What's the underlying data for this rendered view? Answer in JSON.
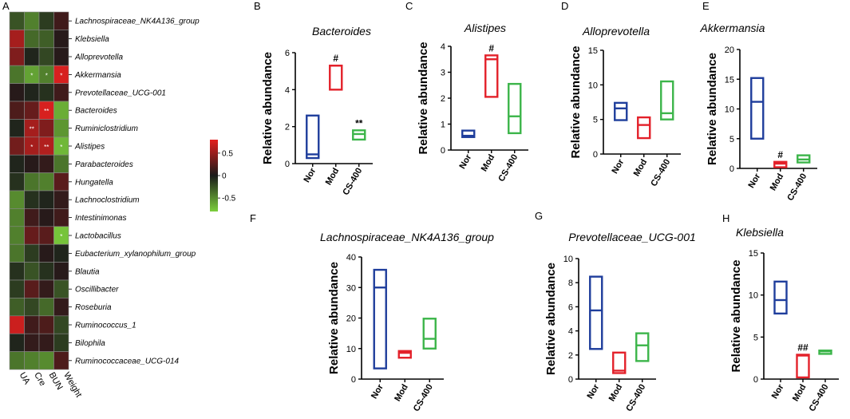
{
  "heatmap": {
    "panel_label": "A",
    "columns": [
      "UA",
      "Cre",
      "BUN",
      "Weight"
    ],
    "rows": [
      "Lachnospiraceae_NK4A136_group",
      "Klebsiella",
      "Alloprevotella",
      "Akkermansia",
      "Prevotellaceae_UCG-001",
      "Bacteroides",
      "Ruminiclostridium",
      "Alistipes",
      "Parabacteroides",
      "Hungatella",
      "Lachnoclostridium",
      "Intestinimonas",
      "Lactobacillus",
      "Eubacterium_xylanophilum_group",
      "Blautia",
      "Oscillibacter",
      "Roseburia",
      "Ruminococcus_1",
      "Bilophila",
      "Ruminococcaceae_UCG-014"
    ],
    "values": [
      [
        -0.25,
        -0.45,
        -0.15,
        0.15
      ],
      [
        0.55,
        -0.35,
        -0.3,
        0.05
      ],
      [
        0.4,
        -0.05,
        -0.2,
        0.05
      ],
      [
        -0.4,
        -0.6,
        -0.45,
        0.75
      ],
      [
        0.05,
        -0.05,
        -0.1,
        0.15
      ],
      [
        0.2,
        0.3,
        0.75,
        -0.65
      ],
      [
        -0.05,
        0.55,
        0.4,
        -0.55
      ],
      [
        0.35,
        0.55,
        0.6,
        -0.7
      ],
      [
        -0.05,
        0.05,
        0.1,
        -0.4
      ],
      [
        -0.1,
        -0.4,
        -0.45,
        0.25
      ],
      [
        -0.5,
        -0.1,
        -0.05,
        0.1
      ],
      [
        -0.45,
        0.15,
        0.05,
        0.15
      ],
      [
        -0.45,
        0.3,
        0.25,
        -0.75
      ],
      [
        -0.4,
        -0.15,
        0.05,
        -0.05
      ],
      [
        -0.1,
        -0.25,
        -0.1,
        0.05
      ],
      [
        -0.15,
        0.25,
        0.1,
        -0.25
      ],
      [
        -0.3,
        -0.2,
        -0.35,
        0.1
      ],
      [
        0.7,
        0.15,
        0.2,
        -0.2
      ],
      [
        -0.05,
        0.1,
        0.1,
        -0.15
      ],
      [
        -0.4,
        -0.45,
        -0.5,
        0.2
      ]
    ],
    "significance": [
      [
        "",
        "",
        "",
        ""
      ],
      [
        "",
        "",
        "",
        ""
      ],
      [
        "",
        "",
        "",
        ""
      ],
      [
        "",
        "*",
        "*",
        "*"
      ],
      [
        "",
        "",
        "",
        ""
      ],
      [
        "",
        "",
        "**",
        ""
      ],
      [
        "",
        "**",
        "",
        ""
      ],
      [
        "",
        "*",
        "**",
        "*"
      ],
      [
        "",
        "",
        "",
        ""
      ],
      [
        "",
        "",
        "",
        ""
      ],
      [
        "",
        "",
        "",
        ""
      ],
      [
        "",
        "",
        "",
        ""
      ],
      [
        "",
        "",
        "",
        "*"
      ],
      [
        "",
        "",
        "",
        ""
      ],
      [
        "",
        "",
        "",
        ""
      ],
      [
        "",
        "",
        "",
        ""
      ],
      [
        "",
        "",
        "",
        ""
      ],
      [
        "",
        "",
        "",
        ""
      ],
      [
        "",
        "",
        "",
        ""
      ],
      [
        "",
        "",
        "",
        ""
      ]
    ],
    "colorbar": {
      "ticks": [
        "0.5",
        "0",
        "-0.5"
      ],
      "tick_values": [
        0.5,
        0,
        -0.5
      ],
      "range": [
        -0.8,
        0.8
      ]
    }
  },
  "colors": {
    "Nor": "#1f3e9c",
    "Mod": "#e3212a",
    "CS-400": "#3cb54a",
    "heat_low": "#7ccf3c",
    "heat_mid": "#1a1a1a",
    "heat_high": "#e4201f"
  },
  "chart_data": [
    {
      "panel": "B",
      "type": "floating-bar",
      "title": "Bacteroides",
      "ylabel": "Relative abundance",
      "ylim": [
        0,
        6
      ],
      "yticks": [
        0,
        2,
        4,
        6
      ],
      "categories": [
        "Nor",
        "Mod",
        "CS-400"
      ],
      "min": [
        0.3,
        4.0,
        1.3
      ],
      "max": [
        2.6,
        5.3,
        1.8
      ],
      "median": [
        0.5,
        5.3,
        1.6
      ],
      "annotations": [
        "",
        "#",
        "**"
      ]
    },
    {
      "panel": "C",
      "type": "floating-bar",
      "title": "Alistipes",
      "ylabel": "Relative abundance",
      "ylim": [
        0,
        4
      ],
      "yticks": [
        0,
        1,
        2,
        3,
        4
      ],
      "categories": [
        "Nor",
        "Mod",
        "CS-400"
      ],
      "min": [
        0.5,
        2.05,
        0.65
      ],
      "max": [
        0.75,
        3.65,
        2.55
      ],
      "median": [
        0.55,
        3.5,
        1.3
      ],
      "annotations": [
        "",
        "#",
        ""
      ]
    },
    {
      "panel": "D",
      "type": "floating-bar",
      "title": "Alloprevotella",
      "ylabel": "Relative abundance",
      "ylim": [
        0,
        15
      ],
      "yticks": [
        0,
        5,
        10,
        15
      ],
      "categories": [
        "Nor",
        "Mod",
        "CS-400"
      ],
      "min": [
        4.9,
        2.3,
        5.0
      ],
      "max": [
        7.4,
        5.3,
        10.5
      ],
      "median": [
        6.6,
        4.2,
        5.9
      ],
      "annotations": [
        "",
        "",
        ""
      ]
    },
    {
      "panel": "E",
      "type": "floating-bar",
      "title": "Akkermansia",
      "ylabel": "Relative abundance",
      "ylim": [
        0,
        20
      ],
      "yticks": [
        0,
        5,
        10,
        15,
        20
      ],
      "categories": [
        "Nor",
        "Mod",
        "CS-400"
      ],
      "min": [
        5.0,
        0.2,
        1.0
      ],
      "max": [
        15.2,
        1.1,
        2.2
      ],
      "median": [
        11.2,
        0.8,
        1.5
      ],
      "annotations": [
        "",
        "#",
        ""
      ]
    },
    {
      "panel": "F",
      "type": "floating-bar",
      "title": "Lachnospiraceae_NK4A136_group",
      "ylabel": "Relative abundance",
      "ylim": [
        0,
        40
      ],
      "yticks": [
        0,
        10,
        20,
        30,
        40
      ],
      "categories": [
        "Nor",
        "Mod",
        "CS-400"
      ],
      "min": [
        3.5,
        7.0,
        10.0
      ],
      "max": [
        35.8,
        9.2,
        19.8
      ],
      "median": [
        30.0,
        8.6,
        13.2
      ],
      "annotations": [
        "",
        "",
        ""
      ]
    },
    {
      "panel": "G",
      "type": "floating-bar",
      "title": "Prevotellaceae_UCG-001",
      "ylabel": "Relative abundance",
      "ylim": [
        0,
        10
      ],
      "yticks": [
        0,
        2,
        4,
        6,
        8,
        10
      ],
      "categories": [
        "Nor",
        "Mod",
        "CS-400"
      ],
      "min": [
        2.5,
        0.5,
        1.5
      ],
      "max": [
        8.5,
        2.2,
        3.8
      ],
      "median": [
        5.7,
        0.7,
        2.8
      ],
      "annotations": [
        "",
        "",
        ""
      ]
    },
    {
      "panel": "H",
      "type": "floating-bar",
      "title": "Klebsiella",
      "ylabel": "Relative abundance",
      "ylim": [
        0,
        15
      ],
      "yticks": [
        0,
        5,
        10,
        15
      ],
      "categories": [
        "Nor",
        "Mod",
        "CS-400"
      ],
      "min": [
        7.8,
        0.2,
        3.0
      ],
      "max": [
        11.6,
        2.9,
        3.4
      ],
      "median": [
        9.4,
        2.8,
        3.3
      ],
      "annotations": [
        "",
        "##",
        ""
      ]
    }
  ]
}
